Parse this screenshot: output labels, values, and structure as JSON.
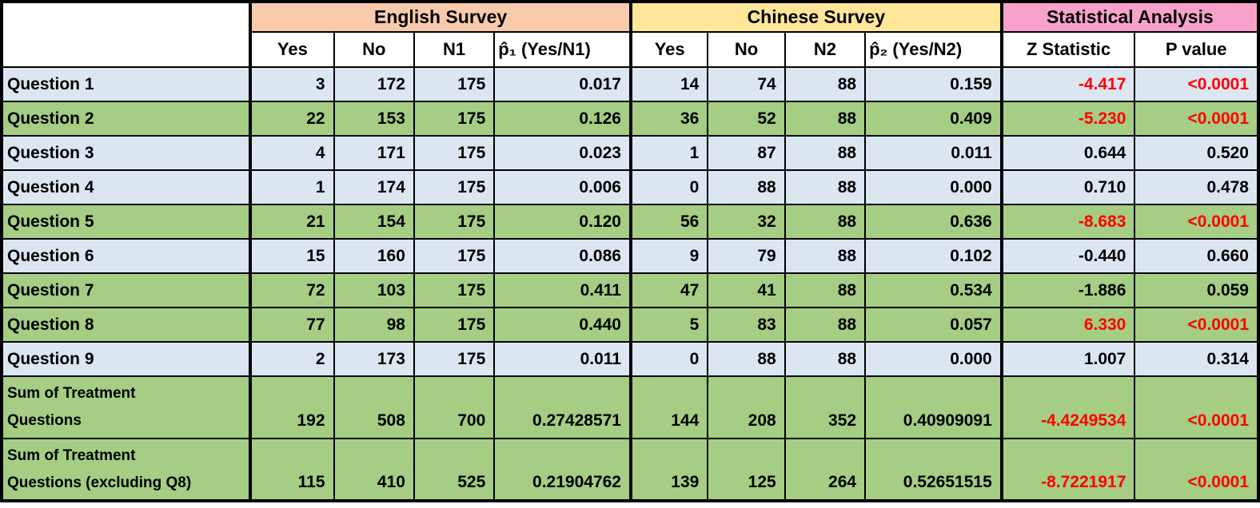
{
  "chart_data": {
    "type": "table",
    "groups": [
      {
        "label": "English Survey",
        "color": "#f8cbad"
      },
      {
        "label": "Chinese Survey",
        "color": "#ffe699"
      },
      {
        "label": "Statistical Analysis",
        "color": "#f8a2cb"
      }
    ],
    "columns": [
      "Yes",
      "No",
      "N1",
      "p̂₁ (Yes/N1)",
      "Yes",
      "No",
      "N2",
      "p̂₂ (Yes/N2)",
      "Z Statistic",
      "P value"
    ],
    "rows": [
      {
        "label": "Question 1",
        "shade": "blue",
        "values": [
          "3",
          "172",
          "175",
          "0.017",
          "14",
          "74",
          "88",
          "0.159"
        ],
        "z": "-4.417",
        "p": "<0.0001",
        "significant": true
      },
      {
        "label": "Question 2",
        "shade": "green",
        "values": [
          "22",
          "153",
          "175",
          "0.126",
          "36",
          "52",
          "88",
          "0.409"
        ],
        "z": "-5.230",
        "p": "<0.0001",
        "significant": true
      },
      {
        "label": "Question 3",
        "shade": "blue",
        "values": [
          "4",
          "171",
          "175",
          "0.023",
          "1",
          "87",
          "88",
          "0.011"
        ],
        "z": "0.644",
        "p": "0.520",
        "significant": false
      },
      {
        "label": "Question 4",
        "shade": "blue",
        "values": [
          "1",
          "174",
          "175",
          "0.006",
          "0",
          "88",
          "88",
          "0.000"
        ],
        "z": "0.710",
        "p": "0.478",
        "significant": false
      },
      {
        "label": "Question 5",
        "shade": "green",
        "values": [
          "21",
          "154",
          "175",
          "0.120",
          "56",
          "32",
          "88",
          "0.636"
        ],
        "z": "-8.683",
        "p": "<0.0001",
        "significant": true
      },
      {
        "label": "Question 6",
        "shade": "blue",
        "values": [
          "15",
          "160",
          "175",
          "0.086",
          "9",
          "79",
          "88",
          "0.102"
        ],
        "z": "-0.440",
        "p": "0.660",
        "significant": false
      },
      {
        "label": "Question 7",
        "shade": "green",
        "values": [
          "72",
          "103",
          "175",
          "0.411",
          "47",
          "41",
          "88",
          "0.534"
        ],
        "z": "-1.886",
        "p": "0.059",
        "significant": false
      },
      {
        "label": "Question 8",
        "shade": "green",
        "values": [
          "77",
          "98",
          "175",
          "0.440",
          "5",
          "83",
          "88",
          "0.057"
        ],
        "z": "6.330",
        "p": "<0.0001",
        "significant": true
      },
      {
        "label": "Question 9",
        "shade": "blue",
        "values": [
          "2",
          "173",
          "175",
          "0.011",
          "0",
          "88",
          "88",
          "0.000"
        ],
        "z": "1.007",
        "p": "0.314",
        "significant": false
      },
      {
        "label": "Sum of Treatment\nQuestions",
        "shade": "green",
        "tall": true,
        "values": [
          "192",
          "508",
          "700",
          "0.27428571",
          "144",
          "208",
          "352",
          "0.40909091"
        ],
        "z": "-4.4249534",
        "p": "<0.0001",
        "significant": true
      },
      {
        "label": "Sum of Treatment\nQuestions (excluding Q8)",
        "shade": "green",
        "tall": true,
        "values": [
          "115",
          "410",
          "525",
          "0.21904762",
          "139",
          "125",
          "264",
          "0.52651515"
        ],
        "z": "-8.7221917",
        "p": "<0.0001",
        "significant": true
      }
    ],
    "colors": {
      "group_english": "#f8cbad",
      "group_chinese": "#ffe699",
      "group_stats": "#f8a2cb",
      "row_blue": "#dce6f1",
      "row_green": "#a5cd84",
      "significant_text": "#ff0000",
      "border": "#000000",
      "background": "#ffffff"
    }
  }
}
